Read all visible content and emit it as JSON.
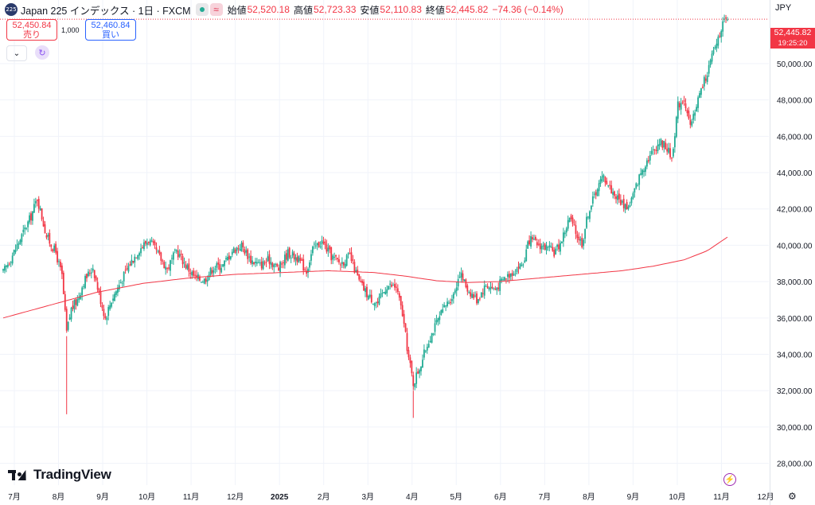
{
  "header": {
    "symbol_badge": "225",
    "title": "Japan 225 インデックス · 1日 · FXCM",
    "ohlc": [
      {
        "label": "始値",
        "value": "52,520.18"
      },
      {
        "label": "高値",
        "value": "52,723.33"
      },
      {
        "label": "安値",
        "value": "52,110.83"
      },
      {
        "label": "終値",
        "value": "52,445.82"
      }
    ],
    "change": "−74.36 (−0.14%)",
    "wave_icon": "≈"
  },
  "trade": {
    "sell_price": "52,450.84",
    "sell_label": "売り",
    "quantity": "1,000",
    "buy_price": "52,460.84",
    "buy_label": "買い"
  },
  "controls": {
    "collapse_icon": "chevron-down-icon",
    "refresh_icon": "refresh-icon",
    "collapse_glyph": "⌄",
    "refresh_glyph": "↻"
  },
  "currency": "JPY",
  "current_price": {
    "value": "52,445.82",
    "time": "19:25:20"
  },
  "logo_text": "TradingView",
  "colors": {
    "up": "#22ab94",
    "down": "#f23645",
    "ma": "#f23645",
    "grid": "#f0f3fa"
  },
  "chart_data": {
    "type": "candlestick",
    "title": "",
    "xlabel": "",
    "ylabel": "",
    "ylim": [
      26800,
      53500
    ],
    "y_ticks": [
      28000,
      30000,
      32000,
      34000,
      36000,
      38000,
      40000,
      42000,
      44000,
      46000,
      48000,
      50000
    ],
    "y_tick_labels": [
      "28,000.00",
      "30,000.00",
      "32,000.00",
      "34,000.00",
      "36,000.00",
      "38,000.00",
      "40,000.00",
      "42,000.00",
      "44,000.00",
      "46,000.00",
      "48,000.00",
      "50,000.00"
    ],
    "x_tick_labels": [
      "7月",
      "8月",
      "9月",
      "10月",
      "11月",
      "12月",
      "2025",
      "2月",
      "3月",
      "4月",
      "5月",
      "6月",
      "7月",
      "8月",
      "9月",
      "10月",
      "11月",
      "12月"
    ],
    "grid": true,
    "price_anchors": [
      [
        0,
        38500
      ],
      [
        8,
        39800
      ],
      [
        18,
        41600
      ],
      [
        22,
        42600
      ],
      [
        28,
        40500
      ],
      [
        34,
        39600
      ],
      [
        38,
        38300
      ],
      [
        41,
        35200
      ],
      [
        44,
        36500
      ],
      [
        48,
        37000
      ],
      [
        52,
        38000
      ],
      [
        58,
        38800
      ],
      [
        62,
        37300
      ],
      [
        66,
        36000
      ],
      [
        70,
        37000
      ],
      [
        76,
        38000
      ],
      [
        82,
        39000
      ],
      [
        88,
        39800
      ],
      [
        94,
        40300
      ],
      [
        100,
        39500
      ],
      [
        106,
        38700
      ],
      [
        112,
        39700
      ],
      [
        118,
        38900
      ],
      [
        124,
        38200
      ],
      [
        130,
        38100
      ],
      [
        136,
        38800
      ],
      [
        142,
        38900
      ],
      [
        148,
        39700
      ],
      [
        154,
        40000
      ],
      [
        160,
        39200
      ],
      [
        166,
        38900
      ],
      [
        172,
        39200
      ],
      [
        178,
        38700
      ],
      [
        184,
        39600
      ],
      [
        190,
        39300
      ],
      [
        196,
        38600
      ],
      [
        200,
        39800
      ],
      [
        206,
        40200
      ],
      [
        212,
        39400
      ],
      [
        218,
        39000
      ],
      [
        224,
        39400
      ],
      [
        230,
        38000
      ],
      [
        236,
        37200
      ],
      [
        242,
        36800
      ],
      [
        248,
        37800
      ],
      [
        254,
        37700
      ],
      [
        258,
        36200
      ],
      [
        262,
        33800
      ],
      [
        265,
        32400
      ],
      [
        270,
        33500
      ],
      [
        275,
        34800
      ],
      [
        280,
        35700
      ],
      [
        286,
        36700
      ],
      [
        291,
        37300
      ],
      [
        295,
        38500
      ],
      [
        300,
        37600
      ],
      [
        306,
        37000
      ],
      [
        312,
        37800
      ],
      [
        318,
        37600
      ],
      [
        324,
        38200
      ],
      [
        330,
        38600
      ],
      [
        336,
        39000
      ],
      [
        340,
        40300
      ],
      [
        344,
        40100
      ],
      [
        350,
        39900
      ],
      [
        356,
        39600
      ],
      [
        360,
        40100
      ],
      [
        366,
        41500
      ],
      [
        370,
        40700
      ],
      [
        374,
        40100
      ],
      [
        378,
        41800
      ],
      [
        384,
        43200
      ],
      [
        388,
        43800
      ],
      [
        394,
        42900
      ],
      [
        400,
        42300
      ],
      [
        404,
        42100
      ],
      [
        408,
        43000
      ],
      [
        412,
        44000
      ],
      [
        416,
        44700
      ],
      [
        420,
        45200
      ],
      [
        424,
        45700
      ],
      [
        428,
        45500
      ],
      [
        432,
        44800
      ],
      [
        436,
        47700
      ],
      [
        440,
        48100
      ],
      [
        444,
        46400
      ],
      [
        448,
        47800
      ],
      [
        452,
        48800
      ],
      [
        456,
        49800
      ],
      [
        460,
        50900
      ],
      [
        464,
        52000
      ],
      [
        468,
        52450
      ]
    ],
    "moving_average": [
      [
        0,
        36000
      ],
      [
        30,
        36700
      ],
      [
        60,
        37400
      ],
      [
        90,
        37900
      ],
      [
        120,
        38200
      ],
      [
        150,
        38400
      ],
      [
        180,
        38500
      ],
      [
        210,
        38600
      ],
      [
        240,
        38500
      ],
      [
        260,
        38300
      ],
      [
        280,
        38050
      ],
      [
        300,
        37950
      ],
      [
        320,
        38000
      ],
      [
        340,
        38150
      ],
      [
        360,
        38300
      ],
      [
        380,
        38450
      ],
      [
        400,
        38600
      ],
      [
        420,
        38850
      ],
      [
        440,
        39200
      ],
      [
        455,
        39700
      ],
      [
        468,
        40450
      ]
    ],
    "last_close": 52445.82
  }
}
